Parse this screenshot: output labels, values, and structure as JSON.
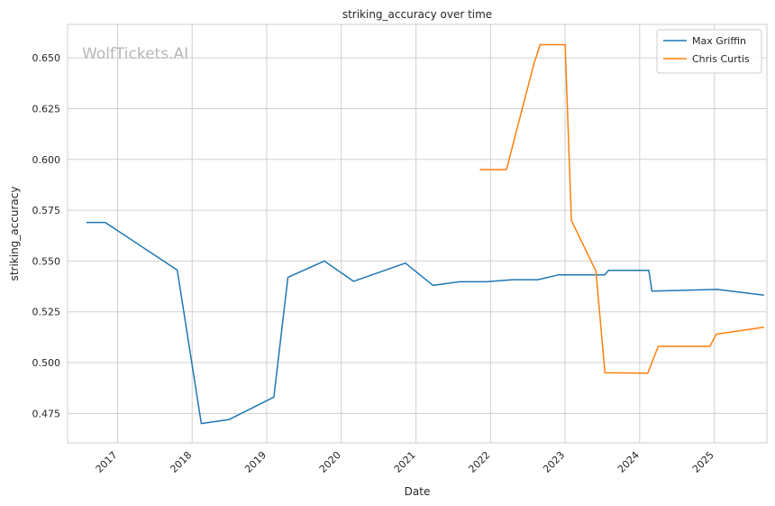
{
  "chart_data": {
    "type": "line",
    "title": "striking_accuracy over time",
    "xlabel": "Date",
    "ylabel": "striking_accuracy",
    "watermark": "WolfTickets.AI",
    "xlim": [
      "2016-05-01",
      "2025-09-15"
    ],
    "ylim": [
      0.4605,
      0.6665
    ],
    "x_ticks": [
      "2017",
      "2018",
      "2019",
      "2020",
      "2021",
      "2022",
      "2023",
      "2024",
      "2025"
    ],
    "y_ticks": [
      "0.475",
      "0.500",
      "0.525",
      "0.550",
      "0.575",
      "0.600",
      "0.625",
      "0.650"
    ],
    "grid": true,
    "legend_position": "top-right",
    "series": [
      {
        "name": "Max Griffin",
        "color": "#1f77b4",
        "points": [
          [
            "2016-08-01",
            0.569
          ],
          [
            "2016-11-01",
            0.569
          ],
          [
            "2017-10-20",
            0.5455
          ],
          [
            "2018-02-15",
            0.47
          ],
          [
            "2018-07-01",
            0.472
          ],
          [
            "2019-02-05",
            0.483
          ],
          [
            "2019-04-15",
            0.542
          ],
          [
            "2019-10-10",
            0.55
          ],
          [
            "2020-03-01",
            0.54
          ],
          [
            "2020-11-10",
            0.549
          ],
          [
            "2021-03-25",
            0.538
          ],
          [
            "2021-08-01",
            0.5398
          ],
          [
            "2021-12-10",
            0.5398
          ],
          [
            "2022-04-20",
            0.5408
          ],
          [
            "2022-08-20",
            0.5408
          ],
          [
            "2022-12-01",
            0.5432
          ],
          [
            "2023-07-15",
            0.5432
          ],
          [
            "2023-08-01",
            0.5454
          ],
          [
            "2024-02-15",
            0.5454
          ],
          [
            "2024-03-01",
            0.5352
          ],
          [
            "2025-01-15",
            0.536
          ],
          [
            "2025-09-01",
            0.5332
          ]
        ]
      },
      {
        "name": "Chris Curtis",
        "color": "#ff7f0e",
        "points": [
          [
            "2021-11-10",
            0.595
          ],
          [
            "2022-03-20",
            0.595
          ],
          [
            "2022-08-01",
            0.647
          ],
          [
            "2022-09-01",
            0.6565
          ],
          [
            "2023-01-01",
            0.6565
          ],
          [
            "2023-02-01",
            0.57
          ],
          [
            "2023-06-01",
            0.545
          ],
          [
            "2023-07-15",
            0.495
          ],
          [
            "2024-02-10",
            0.4948
          ],
          [
            "2024-04-01",
            0.508
          ],
          [
            "2024-12-10",
            0.508
          ],
          [
            "2025-01-10",
            0.514
          ],
          [
            "2025-09-01",
            0.5174
          ]
        ]
      }
    ]
  }
}
